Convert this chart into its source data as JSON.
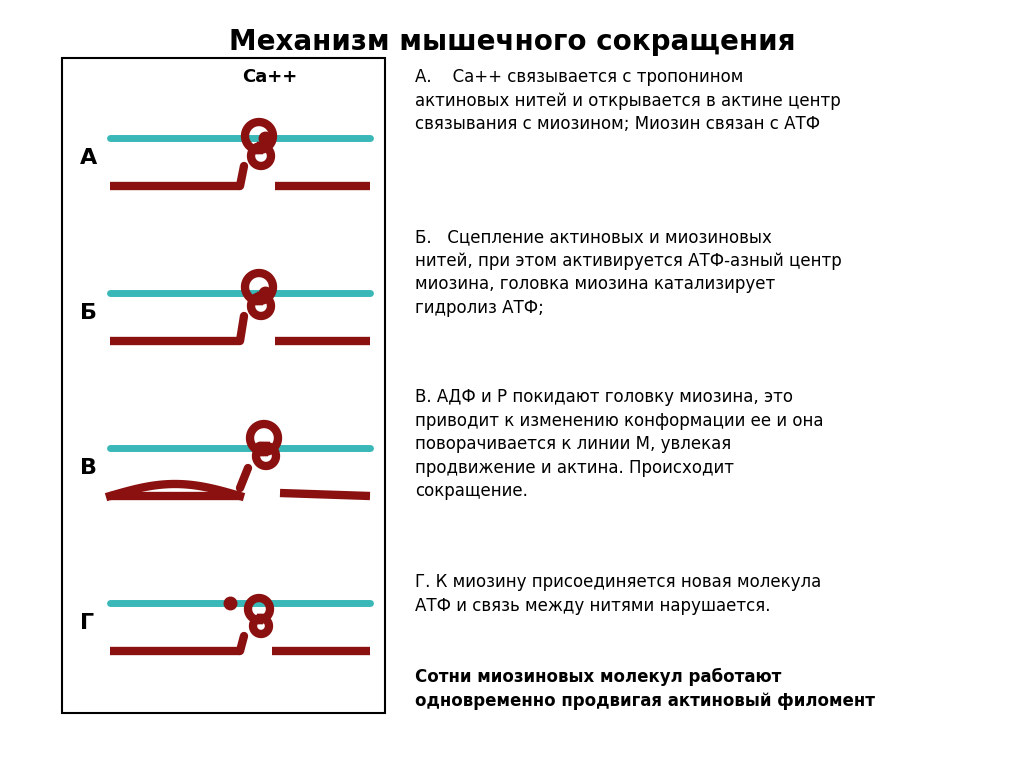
{
  "title": "Механизм мышечного сокращения",
  "title_fontsize": 20,
  "background_color": "#ffffff",
  "box_bg": "#ffffff",
  "actin_color": "#3ab8b8",
  "myosin_color": "#8b1010",
  "dot_color": "#8b1010",
  "labels": [
    "А",
    "Б",
    "В",
    "Г"
  ],
  "ca_label": "Ca++",
  "text_A": "А.    Ca++ связывается с тропонином\nактиновых нитей и открывается в актине центр\nсвязывания с миозином; Миозин связан с АТФ",
  "text_B": "Б.   Сцепление актиновых и миозиновых\nнитей, при этом активируется АТФ-азный центр\nмиозина, головка миозина катализирует\nгидролиз АТФ;",
  "text_C": "В. АДФ и Р покидают головку миозина, это\nприводит к изменению конформации ее и она\nповорачивается к линии М, увлекая\nпродвижение и актина. Происходит\nсокращение.",
  "text_D": "Г. К миозину присоединяется новая молекула\nАТФ и связь между нитями нарушается.",
  "text_bottom": "Сотни миозиновых молекул работают\nодновременно продвигая актиновый филомент"
}
